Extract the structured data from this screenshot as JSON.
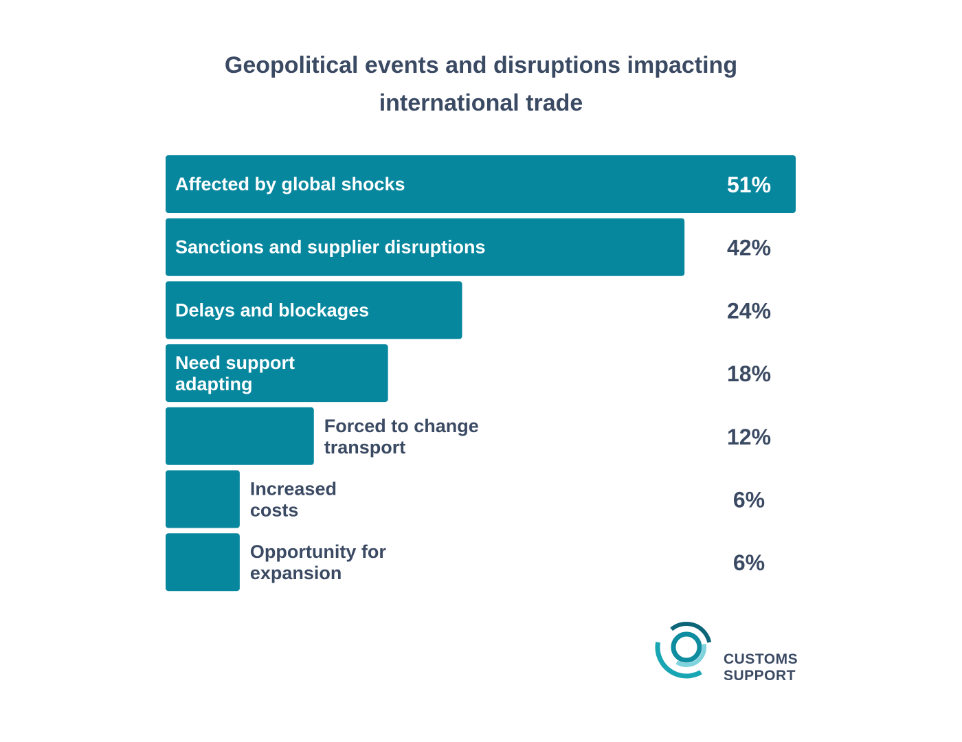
{
  "title_lines": [
    "Geopolitical events and disruptions impacting",
    "international trade"
  ],
  "chart_data": {
    "type": "bar",
    "orientation": "horizontal",
    "title": "Geopolitical events and disruptions impacting international trade",
    "categories": [
      [
        "Affected by global shocks"
      ],
      [
        "Sanctions and supplier disruptions"
      ],
      [
        "Delays and blockages"
      ],
      [
        "Need support",
        "adapting"
      ],
      [
        "Forced to change",
        "transport"
      ],
      [
        "Increased",
        "costs"
      ],
      [
        "Opportunity for",
        "expansion"
      ]
    ],
    "values": [
      51,
      42,
      24,
      18,
      12,
      6,
      6
    ],
    "value_labels": [
      "51%",
      "42%",
      "24%",
      "18%",
      "12%",
      "6%",
      "6%"
    ],
    "unit": "%",
    "xlim": [
      0,
      51
    ],
    "grid": false,
    "legend": "none",
    "colors": {
      "bar": "#07879e",
      "label_inside": "#ffffff",
      "label_outside": "#3b4a63",
      "value_on_bar": "#ffffff",
      "value_off_bar": "#3b4a63"
    }
  },
  "logo": {
    "line1": "CUSTOMS",
    "line2": "SUPPORT",
    "colors": {
      "teal": "#19a6b4",
      "dark": "#0c6677",
      "light": "#7fd3dc"
    }
  }
}
